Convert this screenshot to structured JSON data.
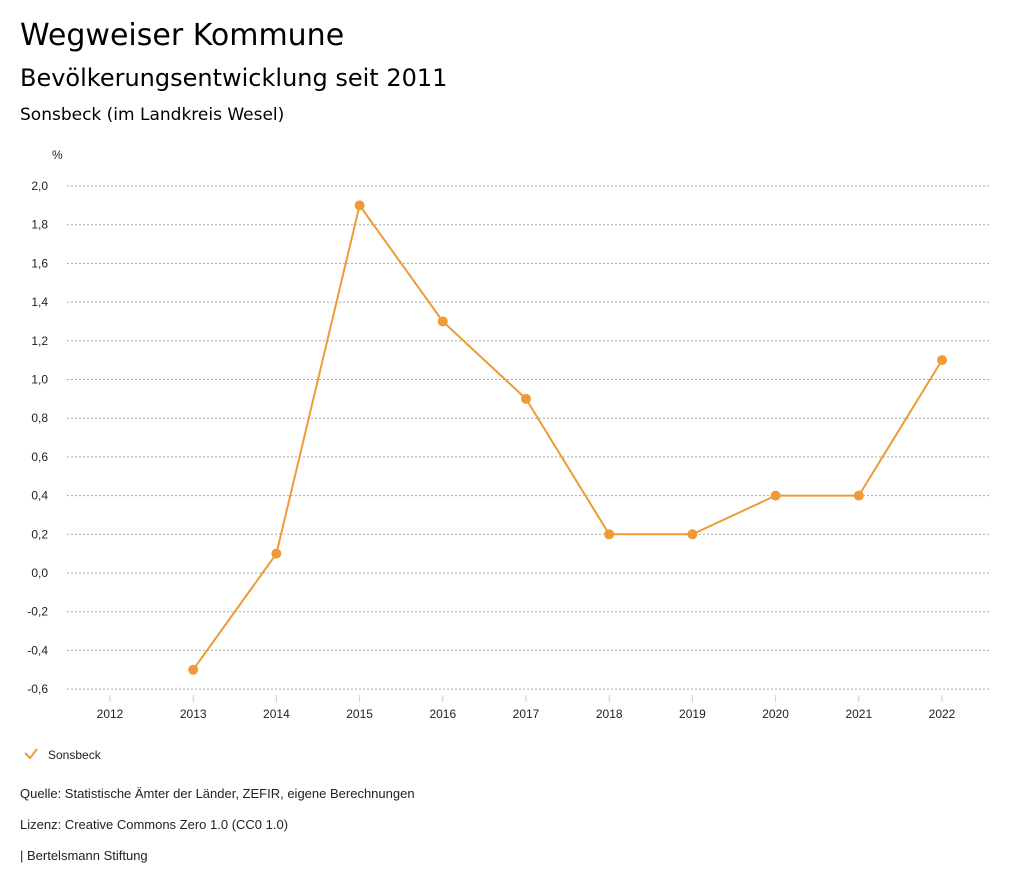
{
  "header": {
    "title": "Wegweiser Kommune",
    "subtitle": "Bevölkerungsentwicklung seit 2011",
    "region": "Sonsbeck (im Landkreis Wesel)"
  },
  "chart_data": {
    "type": "line",
    "ylabel": "%",
    "categories": [
      "2012",
      "2013",
      "2014",
      "2015",
      "2016",
      "2017",
      "2018",
      "2019",
      "2020",
      "2021",
      "2022"
    ],
    "series": [
      {
        "name": "Sonsbeck",
        "color": "#ee9a37",
        "values": [
          null,
          -0.5,
          0.1,
          1.9,
          1.3,
          0.9,
          0.2,
          0.2,
          0.4,
          0.4,
          1.1
        ]
      }
    ],
    "ylim": [
      -0.6,
      2.0
    ],
    "yticks": [
      2.0,
      1.8,
      1.6,
      1.4,
      1.2,
      1.0,
      0.8,
      0.6,
      0.4,
      0.2,
      0.0,
      -0.2,
      -0.4,
      -0.6
    ],
    "grid": true,
    "legend": "bottom-left"
  },
  "footer": {
    "source": "Quelle: Statistische Ämter der Länder, ZEFIR, eigene Berechnungen",
    "license": "Lizenz: Creative Commons Zero 1.0 (CC0 1.0)",
    "publisher": "| Bertelsmann Stiftung"
  }
}
